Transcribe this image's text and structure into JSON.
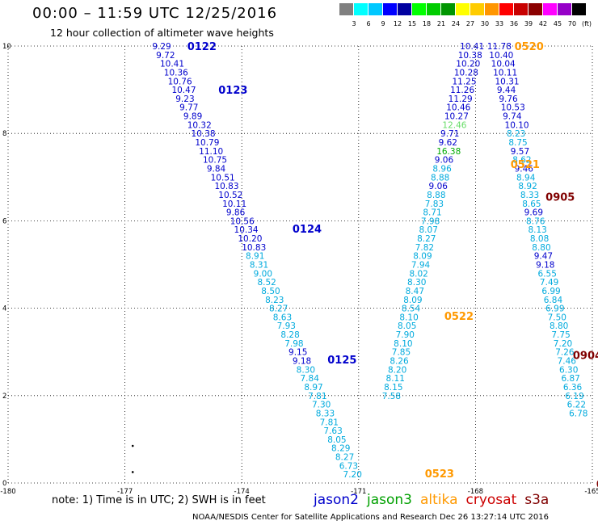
{
  "title": "00:00 – 11:59 UTC 12/25/2016",
  "subtitle": "12 hour collection of altimeter wave heights",
  "note": "note:  1) Time is in UTC;  2) SWH is in feet",
  "footer": "NOAA/NESDIS Center for Satellite Applications and Research     Dec 26 13:27:14 UTC 2016",
  "colorbar": {
    "colors": [
      "#808080",
      "#00ffff",
      "#00c8ff",
      "#0000ff",
      "#0000a0",
      "#00ff00",
      "#00cc00",
      "#009600",
      "#ffff00",
      "#ffcc00",
      "#ff9600",
      "#ff0000",
      "#c80000",
      "#8b0000",
      "#ff00ff",
      "#9600c8",
      "#000000"
    ],
    "labels": [
      "3",
      "6",
      "9",
      "12",
      "15",
      "18",
      "21",
      "24",
      "27",
      "30",
      "33",
      "36",
      "39",
      "42",
      "45",
      "70",
      "(ft)"
    ]
  },
  "legend": [
    {
      "name": "jason2",
      "color": "#0000cc"
    },
    {
      "name": "jason3",
      "color": "#00a000"
    },
    {
      "name": "altika",
      "color": "#ff9900"
    },
    {
      "name": "cryosat",
      "color": "#cc0000"
    },
    {
      "name": "s3a",
      "color": "#800000"
    }
  ],
  "level_colors": {
    "c9": "#00aadd",
    "c12": "#0000cc",
    "c15": "#00aa00",
    "c18": "#66dd66"
  },
  "chart_data": {
    "type": "scatter",
    "xlim": [
      -180,
      -165
    ],
    "ylim": [
      0,
      10
    ],
    "xticks": [
      "-180",
      "-177",
      "-174",
      "-171",
      "-168",
      "-165"
    ],
    "yticks": [
      "0",
      "2",
      "4",
      "6",
      "8",
      "10"
    ],
    "grid": true,
    "time_labels": [
      {
        "text": "0122",
        "x": -175.4,
        "y": 10.0,
        "color": "#0000cc"
      },
      {
        "text": "0123",
        "x": -174.6,
        "y": 9.0,
        "color": "#0000cc"
      },
      {
        "text": "0124",
        "x": -172.7,
        "y": 5.82,
        "color": "#0000cc"
      },
      {
        "text": "0125",
        "x": -171.8,
        "y": 2.83,
        "color": "#0000cc"
      },
      {
        "text": "0520",
        "x": -167.0,
        "y": 10.0,
        "color": "#ff9900"
      },
      {
        "text": "0521",
        "x": -167.1,
        "y": 7.3,
        "color": "#ff9900"
      },
      {
        "text": "0522",
        "x": -168.8,
        "y": 3.83,
        "color": "#ff9900"
      },
      {
        "text": "0523",
        "x": -169.3,
        "y": 0.22,
        "color": "#ff9900"
      },
      {
        "text": "0905",
        "x": -166.2,
        "y": 6.55,
        "color": "#800000"
      },
      {
        "text": "0904",
        "x": -165.5,
        "y": 2.93,
        "color": "#800000"
      },
      {
        "text": "0",
        "x": -164.9,
        "y": -0.02,
        "color": "#800000"
      }
    ],
    "dots": [
      {
        "x": -176.8,
        "y": 0.85
      },
      {
        "x": -176.8,
        "y": 0.25
      }
    ],
    "series": [
      {
        "name": "jason2",
        "points": [
          {
            "x": -176.3,
            "y": 10.0,
            "v": "9.29",
            "c": "c12"
          },
          {
            "x": -176.2,
            "y": 9.8,
            "v": "9.72",
            "c": "c12"
          },
          {
            "x": -176.1,
            "y": 9.6,
            "v": "10.41",
            "c": "c12"
          },
          {
            "x": -176.0,
            "y": 9.4,
            "v": "10.36",
            "c": "c12"
          },
          {
            "x": -175.9,
            "y": 9.2,
            "v": "10.76",
            "c": "c12"
          },
          {
            "x": -175.8,
            "y": 9.0,
            "v": "10.47",
            "c": "c12"
          },
          {
            "x": -175.7,
            "y": 8.8,
            "v": "9.23",
            "c": "c12"
          },
          {
            "x": -175.6,
            "y": 8.6,
            "v": "9.77",
            "c": "c12"
          },
          {
            "x": -175.5,
            "y": 8.4,
            "v": "9.89",
            "c": "c12"
          },
          {
            "x": -175.4,
            "y": 8.2,
            "v": "10.32",
            "c": "c12"
          },
          {
            "x": -175.3,
            "y": 8.0,
            "v": "10.38",
            "c": "c12"
          },
          {
            "x": -175.2,
            "y": 7.8,
            "v": "10.79",
            "c": "c12"
          },
          {
            "x": -175.1,
            "y": 7.6,
            "v": "11.10",
            "c": "c12"
          },
          {
            "x": -175.0,
            "y": 7.4,
            "v": "10.75",
            "c": "c12"
          },
          {
            "x": -174.9,
            "y": 7.2,
            "v": "9.84",
            "c": "c12"
          },
          {
            "x": -174.8,
            "y": 7.0,
            "v": "10.51",
            "c": "c12"
          },
          {
            "x": -174.7,
            "y": 6.8,
            "v": "10.83",
            "c": "c12"
          },
          {
            "x": -174.6,
            "y": 6.6,
            "v": "10.52",
            "c": "c12"
          },
          {
            "x": -174.5,
            "y": 6.4,
            "v": "10.11",
            "c": "c12"
          },
          {
            "x": -174.4,
            "y": 6.2,
            "v": "9.86",
            "c": "c12"
          },
          {
            "x": -174.3,
            "y": 6.0,
            "v": "10.56",
            "c": "c12"
          },
          {
            "x": -174.2,
            "y": 5.8,
            "v": "10.34",
            "c": "c12"
          },
          {
            "x": -174.1,
            "y": 5.6,
            "v": "10.20",
            "c": "c12"
          },
          {
            "x": -174.0,
            "y": 5.4,
            "v": "10.83",
            "c": "c12"
          },
          {
            "x": -173.9,
            "y": 5.2,
            "v": "8.91",
            "c": "c9"
          },
          {
            "x": -173.8,
            "y": 5.0,
            "v": "8.31",
            "c": "c9"
          },
          {
            "x": -173.7,
            "y": 4.8,
            "v": "9.00",
            "c": "c9"
          },
          {
            "x": -173.6,
            "y": 4.6,
            "v": "8.52",
            "c": "c9"
          },
          {
            "x": -173.5,
            "y": 4.4,
            "v": "8.50",
            "c": "c9"
          },
          {
            "x": -173.4,
            "y": 4.2,
            "v": "8.23",
            "c": "c9"
          },
          {
            "x": -173.3,
            "y": 4.0,
            "v": "8.27",
            "c": "c9"
          },
          {
            "x": -173.2,
            "y": 3.8,
            "v": "8.63",
            "c": "c9"
          },
          {
            "x": -173.1,
            "y": 3.6,
            "v": "7.93",
            "c": "c9"
          },
          {
            "x": -173.0,
            "y": 3.4,
            "v": "8.28",
            "c": "c9"
          },
          {
            "x": -172.9,
            "y": 3.2,
            "v": "7.98",
            "c": "c9"
          },
          {
            "x": -172.8,
            "y": 3.0,
            "v": "9.15",
            "c": "c12"
          },
          {
            "x": -172.7,
            "y": 2.8,
            "v": "9.18",
            "c": "c12"
          },
          {
            "x": -172.6,
            "y": 2.6,
            "v": "8.30",
            "c": "c9"
          },
          {
            "x": -172.5,
            "y": 2.4,
            "v": "7.84",
            "c": "c9"
          },
          {
            "x": -172.4,
            "y": 2.2,
            "v": "8.97",
            "c": "c9"
          },
          {
            "x": -172.3,
            "y": 2.0,
            "v": "7.81",
            "c": "c9"
          },
          {
            "x": -172.2,
            "y": 1.8,
            "v": "7.30",
            "c": "c9"
          },
          {
            "x": -172.1,
            "y": 1.6,
            "v": "8.33",
            "c": "c9"
          },
          {
            "x": -172.0,
            "y": 1.4,
            "v": "7.81",
            "c": "c9"
          },
          {
            "x": -171.9,
            "y": 1.2,
            "v": "7.63",
            "c": "c9"
          },
          {
            "x": -171.8,
            "y": 1.0,
            "v": "8.05",
            "c": "c9"
          },
          {
            "x": -171.7,
            "y": 0.8,
            "v": "8.29",
            "c": "c9"
          },
          {
            "x": -171.6,
            "y": 0.6,
            "v": "8.27",
            "c": "c9"
          },
          {
            "x": -171.5,
            "y": 0.4,
            "v": "6.73",
            "c": "c9"
          },
          {
            "x": -171.4,
            "y": 0.2,
            "v": "7.20",
            "c": "c9"
          }
        ]
      },
      {
        "name": "altika",
        "points": [
          {
            "x": -168.4,
            "y": 10.0,
            "v": "10.41",
            "c": "c12"
          },
          {
            "x": -168.45,
            "y": 9.8,
            "v": "10.38",
            "c": "c12"
          },
          {
            "x": -168.5,
            "y": 9.6,
            "v": "10.20",
            "c": "c12"
          },
          {
            "x": -168.55,
            "y": 9.4,
            "v": "10.28",
            "c": "c12"
          },
          {
            "x": -168.6,
            "y": 9.2,
            "v": "11.25",
            "c": "c12"
          },
          {
            "x": -168.65,
            "y": 9.0,
            "v": "11.26",
            "c": "c12"
          },
          {
            "x": -168.7,
            "y": 8.8,
            "v": "11.29",
            "c": "c12"
          },
          {
            "x": -168.75,
            "y": 8.6,
            "v": "10.46",
            "c": "c12"
          },
          {
            "x": -168.8,
            "y": 8.4,
            "v": "10.27",
            "c": "c12"
          },
          {
            "x": -168.85,
            "y": 8.2,
            "v": "12.46",
            "c": "c18"
          },
          {
            "x": -168.9,
            "y": 8.0,
            "v": "9.71",
            "c": "c12"
          },
          {
            "x": -168.95,
            "y": 7.8,
            "v": "9.62",
            "c": "c12"
          },
          {
            "x": -169.0,
            "y": 7.6,
            "v": "16.38",
            "c": "c15"
          },
          {
            "x": -169.05,
            "y": 7.4,
            "v": "9.06",
            "c": "c12"
          },
          {
            "x": -169.1,
            "y": 7.2,
            "v": "8.96",
            "c": "c9"
          },
          {
            "x": -169.15,
            "y": 7.0,
            "v": "8.88",
            "c": "c9"
          },
          {
            "x": -169.2,
            "y": 6.8,
            "v": "9.06",
            "c": "c12"
          },
          {
            "x": -169.25,
            "y": 6.6,
            "v": "8.88",
            "c": "c9"
          },
          {
            "x": -169.3,
            "y": 6.4,
            "v": "7.83",
            "c": "c9"
          },
          {
            "x": -169.35,
            "y": 6.2,
            "v": "8.71",
            "c": "c9"
          },
          {
            "x": -169.4,
            "y": 6.0,
            "v": "7.98",
            "c": "c9"
          },
          {
            "x": -169.45,
            "y": 5.8,
            "v": "8.07",
            "c": "c9"
          },
          {
            "x": -169.5,
            "y": 5.6,
            "v": "8.27",
            "c": "c9"
          },
          {
            "x": -169.55,
            "y": 5.4,
            "v": "7.82",
            "c": "c9"
          },
          {
            "x": -169.6,
            "y": 5.2,
            "v": "8.09",
            "c": "c9"
          },
          {
            "x": -169.65,
            "y": 5.0,
            "v": "7.94",
            "c": "c9"
          },
          {
            "x": -169.7,
            "y": 4.8,
            "v": "8.02",
            "c": "c9"
          },
          {
            "x": -169.75,
            "y": 4.6,
            "v": "8.30",
            "c": "c9"
          },
          {
            "x": -169.8,
            "y": 4.4,
            "v": "8.47",
            "c": "c9"
          },
          {
            "x": -169.85,
            "y": 4.2,
            "v": "8.09",
            "c": "c9"
          },
          {
            "x": -169.9,
            "y": 4.0,
            "v": "8.54",
            "c": "c9"
          },
          {
            "x": -169.95,
            "y": 3.8,
            "v": "8.10",
            "c": "c9"
          },
          {
            "x": -170.0,
            "y": 3.6,
            "v": "8.05",
            "c": "c9"
          },
          {
            "x": -170.05,
            "y": 3.4,
            "v": "7.90",
            "c": "c9"
          },
          {
            "x": -170.1,
            "y": 3.2,
            "v": "8.10",
            "c": "c9"
          },
          {
            "x": -170.15,
            "y": 3.0,
            "v": "7.85",
            "c": "c9"
          },
          {
            "x": -170.2,
            "y": 2.8,
            "v": "8.26",
            "c": "c9"
          },
          {
            "x": -170.25,
            "y": 2.6,
            "v": "8.20",
            "c": "c9"
          },
          {
            "x": -170.3,
            "y": 2.4,
            "v": "8.11",
            "c": "c9"
          },
          {
            "x": -170.35,
            "y": 2.2,
            "v": "8.15",
            "c": "c9"
          },
          {
            "x": -170.4,
            "y": 2.0,
            "v": "7.58",
            "c": "c9"
          }
        ]
      },
      {
        "name": "s3a",
        "points": [
          {
            "x": -167.7,
            "y": 10.0,
            "v": "11.78",
            "c": "c12"
          },
          {
            "x": -167.65,
            "y": 9.8,
            "v": "10.40",
            "c": "c12"
          },
          {
            "x": -167.6,
            "y": 9.6,
            "v": "10.04",
            "c": "c12"
          },
          {
            "x": -167.55,
            "y": 9.4,
            "v": "10.11",
            "c": "c12"
          },
          {
            "x": -167.5,
            "y": 9.2,
            "v": "10.31",
            "c": "c12"
          },
          {
            "x": -167.45,
            "y": 9.0,
            "v": "9.44",
            "c": "c12"
          },
          {
            "x": -167.4,
            "y": 8.8,
            "v": "9.76",
            "c": "c12"
          },
          {
            "x": -167.35,
            "y": 8.6,
            "v": "10.53",
            "c": "c12"
          },
          {
            "x": -167.3,
            "y": 8.4,
            "v": "9.74",
            "c": "c12"
          },
          {
            "x": -167.25,
            "y": 8.2,
            "v": "10.10",
            "c": "c12"
          },
          {
            "x": -167.2,
            "y": 8.0,
            "v": "8.23",
            "c": "c9"
          },
          {
            "x": -167.15,
            "y": 7.8,
            "v": "8.75",
            "c": "c9"
          },
          {
            "x": -167.1,
            "y": 7.6,
            "v": "9.57",
            "c": "c12"
          },
          {
            "x": -167.05,
            "y": 7.4,
            "v": "8.62",
            "c": "c9"
          },
          {
            "x": -167.0,
            "y": 7.2,
            "v": "9.46",
            "c": "c12"
          },
          {
            "x": -166.95,
            "y": 7.0,
            "v": "8.94",
            "c": "c9"
          },
          {
            "x": -166.9,
            "y": 6.8,
            "v": "8.92",
            "c": "c9"
          },
          {
            "x": -166.85,
            "y": 6.6,
            "v": "8.33",
            "c": "c9"
          },
          {
            "x": -166.8,
            "y": 6.4,
            "v": "8.65",
            "c": "c9"
          },
          {
            "x": -166.75,
            "y": 6.2,
            "v": "9.69",
            "c": "c12"
          },
          {
            "x": -166.7,
            "y": 6.0,
            "v": "8.76",
            "c": "c9"
          },
          {
            "x": -166.65,
            "y": 5.8,
            "v": "8.13",
            "c": "c9"
          },
          {
            "x": -166.6,
            "y": 5.6,
            "v": "8.08",
            "c": "c9"
          },
          {
            "x": -166.55,
            "y": 5.4,
            "v": "8.80",
            "c": "c9"
          },
          {
            "x": -166.5,
            "y": 5.2,
            "v": "9.47",
            "c": "c12"
          },
          {
            "x": -166.45,
            "y": 5.0,
            "v": "9.18",
            "c": "c12"
          },
          {
            "x": -166.4,
            "y": 4.8,
            "v": "6.55",
            "c": "c9"
          },
          {
            "x": -166.35,
            "y": 4.6,
            "v": "7.49",
            "c": "c9"
          },
          {
            "x": -166.3,
            "y": 4.4,
            "v": "6.99",
            "c": "c9"
          },
          {
            "x": -166.25,
            "y": 4.2,
            "v": "6.84",
            "c": "c9"
          },
          {
            "x": -166.2,
            "y": 4.0,
            "v": "6.99",
            "c": "c9"
          },
          {
            "x": -166.15,
            "y": 3.8,
            "v": "7.50",
            "c": "c9"
          },
          {
            "x": -166.1,
            "y": 3.6,
            "v": "8.80",
            "c": "c9"
          },
          {
            "x": -166.05,
            "y": 3.4,
            "v": "7.75",
            "c": "c9"
          },
          {
            "x": -166.0,
            "y": 3.2,
            "v": "7.20",
            "c": "c9"
          },
          {
            "x": -165.95,
            "y": 3.0,
            "v": "7.26",
            "c": "c9"
          },
          {
            "x": -165.9,
            "y": 2.8,
            "v": "7.46",
            "c": "c9"
          },
          {
            "x": -165.85,
            "y": 2.6,
            "v": "6.30",
            "c": "c9"
          },
          {
            "x": -165.8,
            "y": 2.4,
            "v": "6.87",
            "c": "c9"
          },
          {
            "x": -165.75,
            "y": 2.2,
            "v": "6.36",
            "c": "c9"
          },
          {
            "x": -165.7,
            "y": 2.0,
            "v": "6.19",
            "c": "c9"
          },
          {
            "x": -165.65,
            "y": 1.8,
            "v": "6.22",
            "c": "c9"
          },
          {
            "x": -165.6,
            "y": 1.6,
            "v": "6.78",
            "c": "c9"
          }
        ]
      }
    ]
  }
}
